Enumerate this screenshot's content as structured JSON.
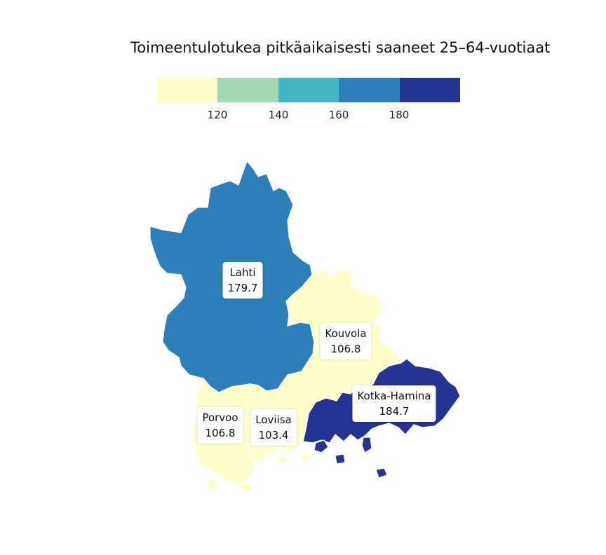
{
  "title": "Toimeentulotukea pitkäaikaisesti saaneet 25–64-vuotiaat",
  "legend": {
    "colors": [
      "#ffffcc",
      "#a1dab4",
      "#41b6c4",
      "#2c7fb8",
      "#253494"
    ],
    "ticks": [
      "120",
      "140",
      "160",
      "180"
    ]
  },
  "regions": [
    {
      "name": "Lahti",
      "value": "179.7",
      "color": "#2c7fb8"
    },
    {
      "name": "Kouvola",
      "value": "106.8",
      "color": "#ffffcc"
    },
    {
      "name": "Kotka-Hamina",
      "value": "184.7",
      "color": "#253494"
    },
    {
      "name": "Porvoo",
      "value": "106.8",
      "color": "#ffffcc"
    },
    {
      "name": "Loviisa",
      "value": "103.4",
      "color": "#ffffcc"
    }
  ]
}
